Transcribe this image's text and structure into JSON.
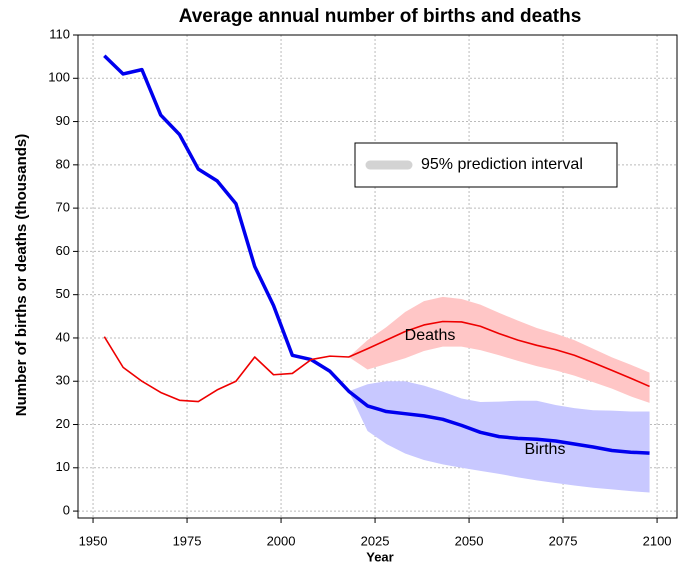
{
  "chart_data": {
    "type": "line",
    "title": "Average annual number of births and deaths",
    "x_label": "Year",
    "y_label": "Number of births or deaths (thousands)",
    "x": [
      1953,
      1958,
      1963,
      1968,
      1973,
      1978,
      1983,
      1988,
      1993,
      1998,
      2003,
      2008,
      2013,
      2018,
      2023,
      2028,
      2033,
      2038,
      2043,
      2048,
      2053,
      2058,
      2063,
      2068,
      2073,
      2078,
      2083,
      2088,
      2093,
      2098
    ],
    "series": [
      {
        "name": "Births",
        "color": "#0000ee",
        "width": 3.5,
        "values": [
          105.2,
          101,
          102,
          91.5,
          87,
          79,
          76.3,
          71,
          56.5,
          47.5,
          36,
          35,
          32.3,
          27.7,
          24.3,
          23,
          22.5,
          22,
          21.2,
          19.8,
          18.2,
          17.2,
          16.8,
          16.6,
          16.2,
          15.5,
          14.8,
          14,
          13.6,
          13.4
        ]
      },
      {
        "name": "Deaths",
        "color": "#ee0000",
        "width": 1.6,
        "values": [
          40.3,
          33.2,
          30,
          27.4,
          25.6,
          25.3,
          28,
          30,
          35.6,
          31.5,
          31.8,
          35,
          35.8,
          35.6,
          37.5,
          39.5,
          41.5,
          43,
          43.8,
          43.7,
          42.7,
          41,
          39.5,
          38.3,
          37.3,
          36,
          34.3,
          32.5,
          30.7,
          28.8
        ]
      }
    ],
    "bands": [
      {
        "color": "#ffc6c6",
        "x": [
          2018,
          2023,
          2028,
          2033,
          2038,
          2043,
          2048,
          2053,
          2058,
          2063,
          2068,
          2073,
          2078,
          2083,
          2088,
          2093,
          2098
        ],
        "lower": [
          35.6,
          32.7,
          34,
          35.3,
          37,
          38,
          38,
          37.2,
          36,
          34.7,
          33.5,
          32.5,
          31.3,
          29.8,
          28.3,
          26.5,
          25
        ],
        "upper": [
          35.6,
          39.5,
          42.5,
          46,
          48.5,
          49.5,
          49,
          47.7,
          45.8,
          44,
          42.3,
          41,
          39.5,
          37.5,
          35.5,
          33.8,
          32
        ]
      },
      {
        "color": "#c8c8ff",
        "x": [
          2018,
          2023,
          2028,
          2033,
          2038,
          2043,
          2048,
          2053,
          2058,
          2063,
          2068,
          2073,
          2078,
          2083,
          2088,
          2093,
          2098
        ],
        "lower": [
          27.7,
          18.5,
          15.5,
          13.3,
          11.8,
          10.8,
          10,
          9.3,
          8.6,
          7.8,
          7.1,
          6.5,
          5.9,
          5.4,
          5,
          4.6,
          4.3
        ],
        "upper": [
          27.7,
          29.3,
          30,
          30,
          29,
          27.6,
          26,
          25.2,
          25.3,
          25.5,
          25.5,
          24.5,
          23.8,
          23.3,
          23.2,
          23,
          23
        ]
      }
    ],
    "legend": {
      "label": "95% prediction interval",
      "color": "#d3d3d3"
    },
    "xlim": [
      1946,
      2105.3
    ],
    "ylim": [
      -1.6,
      110
    ],
    "xticks": [
      1950,
      1975,
      2000,
      2025,
      2050,
      2075,
      2100
    ],
    "yticks": [
      0,
      10,
      20,
      30,
      40,
      50,
      60,
      70,
      80,
      90,
      100,
      110
    ],
    "grid": true
  }
}
